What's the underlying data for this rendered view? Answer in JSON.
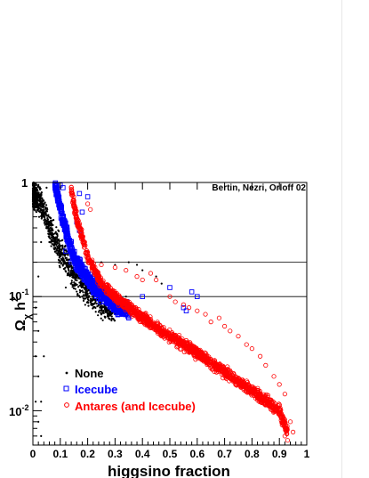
{
  "chart_data": {
    "type": "scatter",
    "annotation": "Bertin, Nezri, Orloff 02",
    "xlabel": "higgsino fraction",
    "ylabel_main": "Ω",
    "ylabel_sub": "χ",
    "ylabel_tail": "h",
    "ylabel_sup": "2",
    "x_range": [
      0,
      1
    ],
    "y_range": [
      0.005,
      1
    ],
    "y_scale": "log",
    "x_ticks": [
      "0",
      "0.1",
      "0.2",
      "0.3",
      "0.4",
      "0.5",
      "0.6",
      "0.7",
      "0.8",
      "0.9",
      "1"
    ],
    "y_tick_1": "1",
    "y_tick_01_base": "10",
    "y_tick_01_exp": "-1",
    "y_tick_001_base": "10",
    "y_tick_001_exp": "-2",
    "reference_lines": [
      0.1,
      0.2
    ],
    "legend_position": "lower-left",
    "series": [
      {
        "name": "None",
        "marker": "dot",
        "color": "#000000",
        "trend": [
          [
            0.0,
            0.8
          ],
          [
            0.03,
            0.65
          ],
          [
            0.06,
            0.4
          ],
          [
            0.1,
            0.25
          ],
          [
            0.15,
            0.15
          ],
          [
            0.2,
            0.11
          ],
          [
            0.25,
            0.085
          ],
          [
            0.3,
            0.07
          ]
        ],
        "points": [
          [
            0.02,
            0.95
          ],
          [
            0.05,
            0.9
          ],
          [
            0.08,
            0.85
          ],
          [
            0.04,
            0.5
          ],
          [
            0.06,
            0.3
          ],
          [
            0.12,
            0.35
          ],
          [
            0.15,
            0.25
          ],
          [
            0.2,
            0.2
          ],
          [
            0.25,
            0.2
          ],
          [
            0.3,
            0.19
          ],
          [
            0.35,
            0.2
          ],
          [
            0.38,
            0.19
          ],
          [
            0.4,
            0.17
          ],
          [
            0.45,
            0.15
          ],
          [
            0.47,
            0.13
          ],
          [
            0.2,
            0.09
          ],
          [
            0.18,
            0.1
          ],
          [
            0.25,
            0.075
          ],
          [
            0.3,
            0.07
          ],
          [
            0.33,
            0.095
          ],
          [
            0.34,
            0.1
          ],
          [
            0.28,
            0.072
          ],
          [
            0.12,
            0.12
          ],
          [
            0.22,
            0.11
          ],
          [
            0.03,
            0.3
          ],
          [
            0.02,
            0.15
          ],
          [
            0.01,
            0.08
          ],
          [
            0.02,
            0.05
          ],
          [
            0.01,
            0.03
          ],
          [
            0.02,
            0.02
          ],
          [
            0.01,
            0.012
          ],
          [
            0.02,
            0.008
          ],
          [
            0.03,
            0.006
          ],
          [
            0.04,
            0.03
          ],
          [
            0.03,
            0.012
          ]
        ]
      },
      {
        "name": "Icecube",
        "marker": "square",
        "color": "#0000ff",
        "trend": [
          [
            0.08,
            1.0
          ],
          [
            0.1,
            0.6
          ],
          [
            0.12,
            0.38
          ],
          [
            0.15,
            0.22
          ],
          [
            0.2,
            0.14
          ],
          [
            0.25,
            0.105
          ],
          [
            0.3,
            0.085
          ],
          [
            0.35,
            0.075
          ]
        ],
        "points": [
          [
            0.1,
            0.95
          ],
          [
            0.11,
            0.9
          ],
          [
            0.17,
            0.8
          ],
          [
            0.2,
            0.75
          ],
          [
            0.18,
            0.55
          ],
          [
            0.16,
            0.45
          ],
          [
            0.17,
            0.38
          ],
          [
            0.27,
            0.1
          ],
          [
            0.4,
            0.1
          ],
          [
            0.5,
            0.12
          ],
          [
            0.55,
            0.08
          ],
          [
            0.56,
            0.075
          ],
          [
            0.58,
            0.11
          ],
          [
            0.6,
            0.1
          ],
          [
            0.35,
            0.065
          ],
          [
            0.33,
            0.07
          ],
          [
            0.12,
            0.25
          ],
          [
            0.14,
            0.2
          ]
        ]
      },
      {
        "name": "Antares (and Icecube)",
        "marker": "circle",
        "color": "#ff0000",
        "trend": [
          [
            0.14,
            0.85
          ],
          [
            0.16,
            0.48
          ],
          [
            0.2,
            0.22
          ],
          [
            0.25,
            0.13
          ],
          [
            0.3,
            0.1
          ],
          [
            0.35,
            0.08
          ],
          [
            0.4,
            0.065
          ],
          [
            0.5,
            0.045
          ],
          [
            0.6,
            0.032
          ],
          [
            0.7,
            0.022
          ],
          [
            0.8,
            0.015
          ],
          [
            0.9,
            0.01
          ],
          [
            0.93,
            0.0065
          ]
        ],
        "points": [
          [
            0.2,
            0.65
          ],
          [
            0.21,
            0.58
          ],
          [
            0.25,
            0.19
          ],
          [
            0.3,
            0.18
          ],
          [
            0.34,
            0.17
          ],
          [
            0.38,
            0.15
          ],
          [
            0.4,
            0.14
          ],
          [
            0.43,
            0.16
          ],
          [
            0.45,
            0.14
          ],
          [
            0.5,
            0.1
          ],
          [
            0.52,
            0.09
          ],
          [
            0.55,
            0.085
          ],
          [
            0.57,
            0.08
          ],
          [
            0.6,
            0.075
          ],
          [
            0.63,
            0.07
          ],
          [
            0.65,
            0.06
          ],
          [
            0.68,
            0.065
          ],
          [
            0.7,
            0.055
          ],
          [
            0.72,
            0.05
          ],
          [
            0.75,
            0.045
          ],
          [
            0.78,
            0.038
          ],
          [
            0.8,
            0.035
          ],
          [
            0.83,
            0.03
          ],
          [
            0.85,
            0.025
          ],
          [
            0.88,
            0.02
          ],
          [
            0.9,
            0.017
          ],
          [
            0.92,
            0.014
          ],
          [
            0.95,
            0.0065
          ],
          [
            0.94,
            0.008
          ],
          [
            0.92,
            0.006
          ],
          [
            0.93,
            0.0055
          ],
          [
            0.91,
            0.0075
          ]
        ]
      }
    ]
  }
}
